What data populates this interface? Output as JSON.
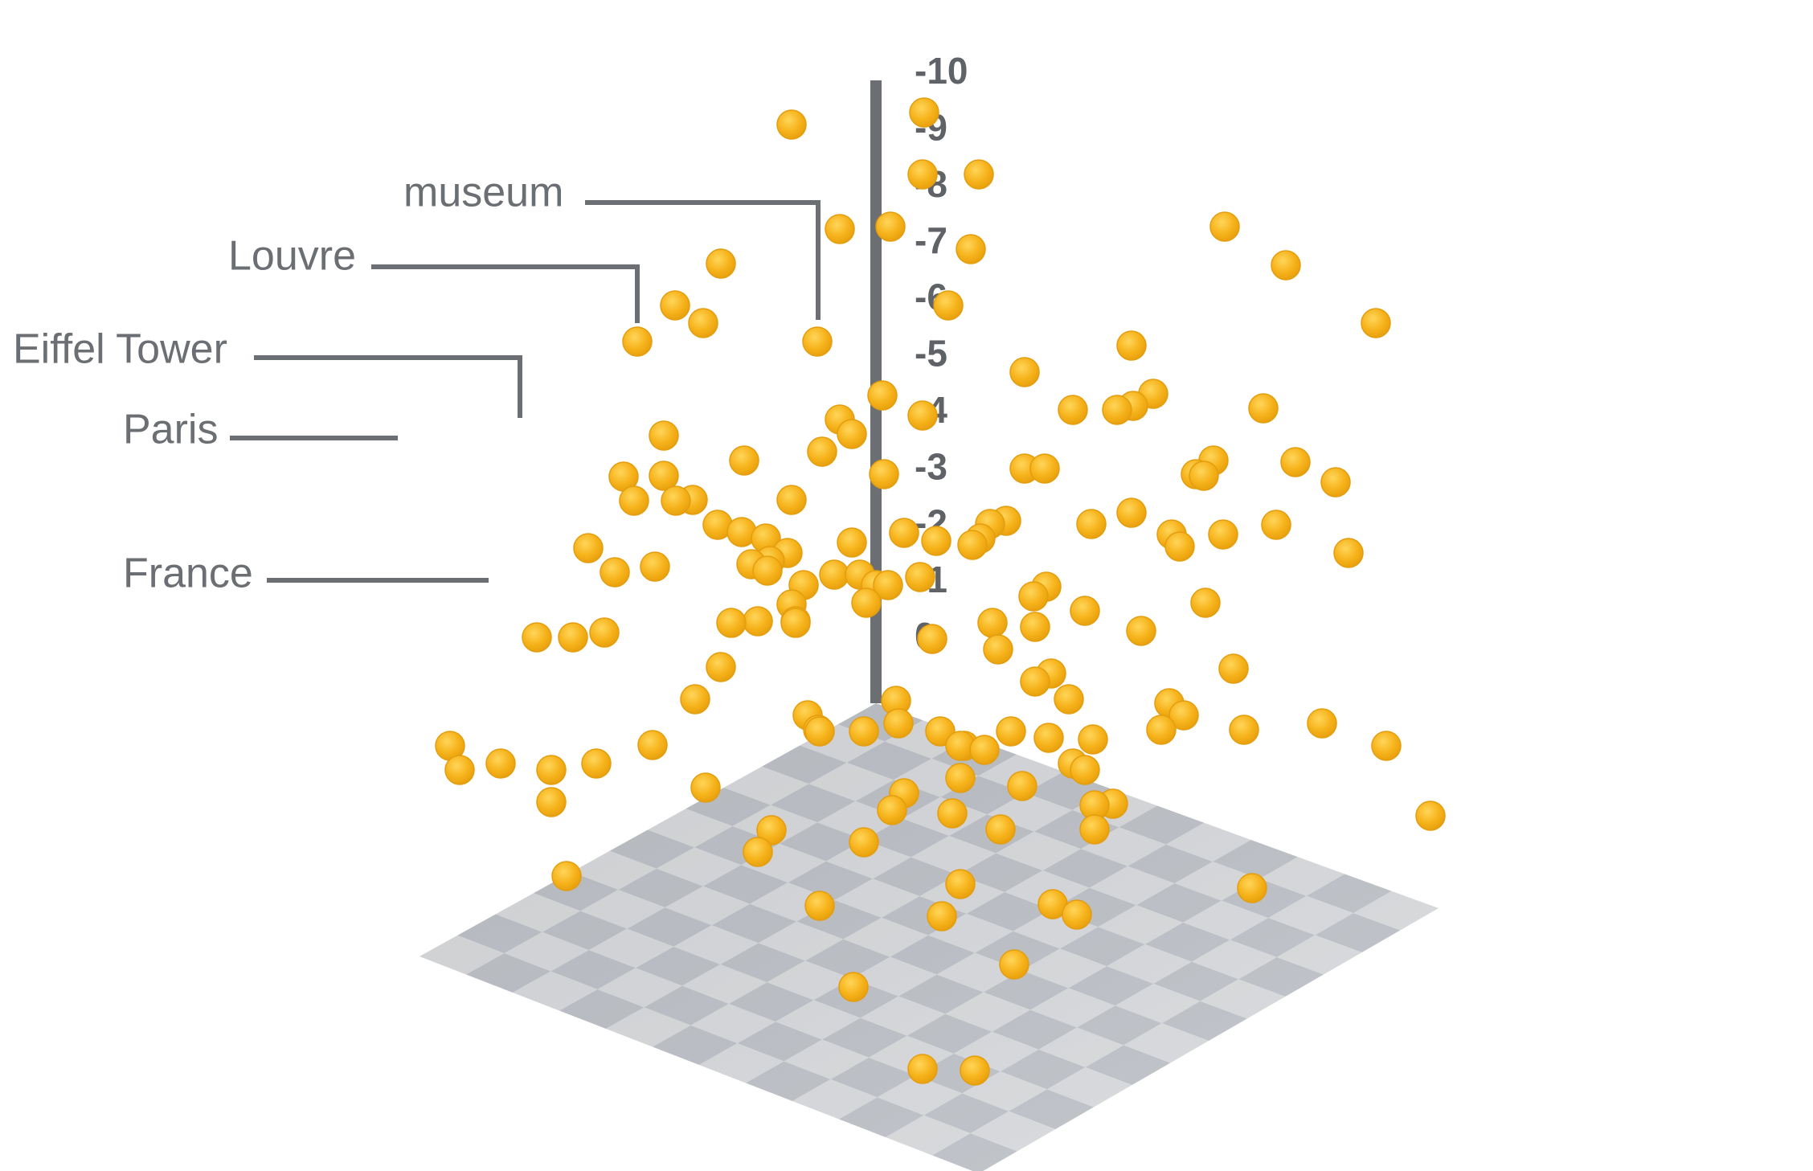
{
  "colors": {
    "point": "#f6b21a",
    "point_stroke": "#e49d0e",
    "axis": "#6b6e72",
    "label": "#6b6e72",
    "floor_light": "#d9dbde",
    "floor_dark": "#bfc3c9"
  },
  "chart_data": {
    "type": "scatter",
    "view": "3d",
    "grid": true,
    "y_axis": {
      "ticks": [
        "0",
        "-1",
        "-2",
        "-3",
        "-4",
        "-5",
        "-6",
        "-7",
        "-8",
        "-9",
        "-10"
      ],
      "range": [
        0,
        -10
      ]
    },
    "annotations": [
      {
        "text": "museum"
      },
      {
        "text": "Louvre"
      },
      {
        "text": "Eiffel Tower"
      },
      {
        "text": "Paris"
      },
      {
        "text": "France"
      }
    ],
    "points_count": 150
  }
}
